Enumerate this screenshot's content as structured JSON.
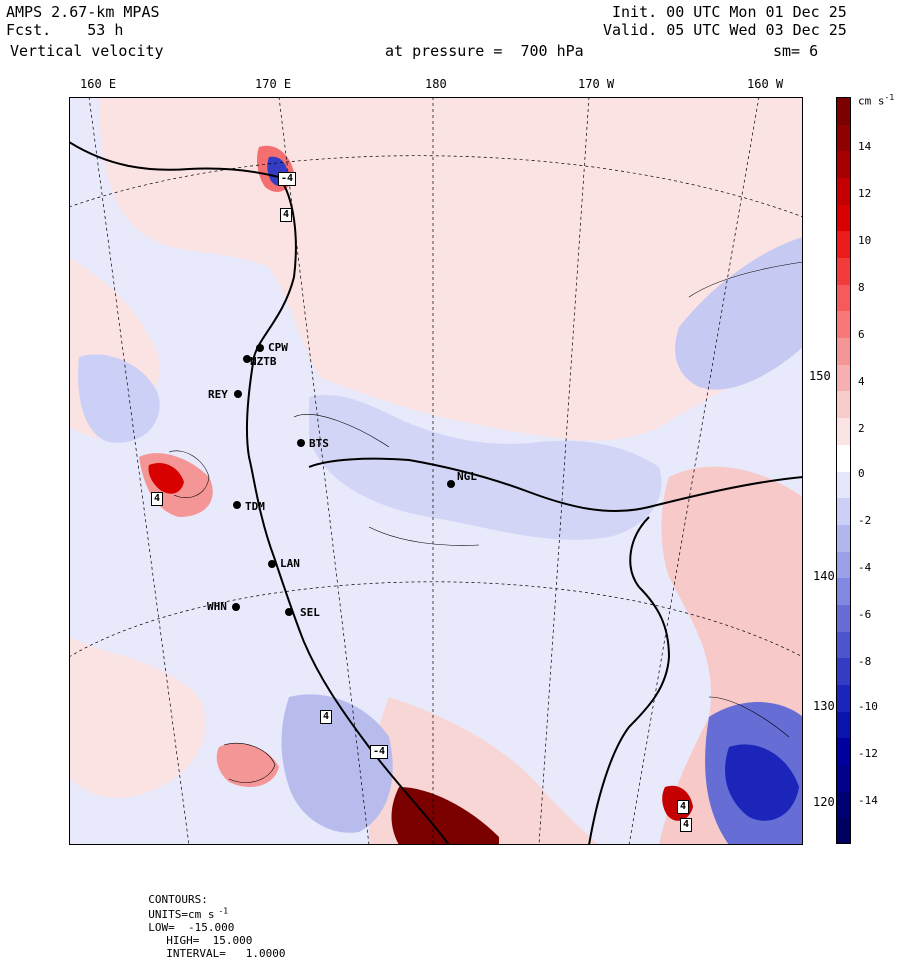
{
  "header": {
    "title": "AMPS 2.67-km MPAS",
    "fcst_label": "Fcst.",
    "fcst_value": "53 h",
    "field": "Vertical velocity",
    "init": "Init. 00 UTC Mon 01 Dec 25",
    "valid": "Valid. 05 UTC Wed 03 Dec 25",
    "pressure": "at pressure =  700 hPa",
    "smoothing": "sm= 6"
  },
  "longitude_labels": [
    "160 E",
    "170 E",
    "180",
    "170 W",
    "160 W"
  ],
  "latitude_labels": [
    "150 W",
    "140 W",
    "130 W",
    "120 W"
  ],
  "stations": [
    "CPW",
    "NZTB",
    "REY",
    "BTS",
    "NGL",
    "TDM",
    "LAN",
    "WHN",
    "SEL"
  ],
  "extrema_labels": [
    "-4",
    "4",
    "4",
    "4",
    "-4",
    "4",
    "4"
  ],
  "colorbar": {
    "units": "cm s",
    "units_exp": "-1",
    "ticks": [
      "14",
      "12",
      "10",
      "8",
      "6",
      "4",
      "2",
      "0",
      "-2",
      "-4",
      "-6",
      "-8",
      "-10",
      "-12",
      "-14"
    ],
    "colors": [
      "#7b0000",
      "#8f0000",
      "#a80000",
      "#c40000",
      "#d90000",
      "#ec1b1b",
      "#f43b3b",
      "#f75a5a",
      "#f77878",
      "#f59696",
      "#f6b0b0",
      "#f9cccc",
      "#fce4e4",
      "#ffffff",
      "#e4e6fb",
      "#ccd0f6",
      "#b1b6ef",
      "#9a9fe8",
      "#8088df",
      "#666ed6",
      "#4d55cd",
      "#333dc4",
      "#1b25b9",
      "#0a14ad",
      "#0000a0",
      "#00008a",
      "#000075",
      "#000060"
    ]
  },
  "footer": {
    "contours": "CONTOURS:",
    "units": "UNITS=cm s",
    "units_exp": "-1",
    "low": "LOW=  -15.000",
    "high": "HIGH=  15.000",
    "interval": "INTERVAL=   1.0000"
  }
}
